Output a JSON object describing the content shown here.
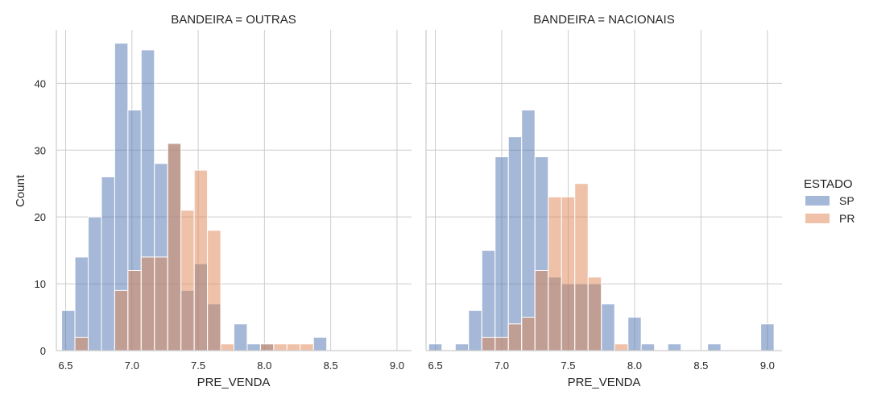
{
  "chart_data": {
    "type": "bar",
    "subtype": "histogram",
    "ylabel": "Count",
    "ylim": [
      0,
      48
    ],
    "yticks": [
      0,
      10,
      20,
      30,
      40
    ],
    "grid": true,
    "legend": {
      "title": "ESTADO",
      "position": "right",
      "entries": [
        {
          "label": "SP",
          "color": "#4c72b0"
        },
        {
          "label": "PR",
          "color": "#dd8452"
        }
      ]
    },
    "bar_opacity": 0.5,
    "panels": [
      {
        "title": "BANDEIRA = OUTRAS",
        "xlabel": "PRE_VENDA",
        "xlim": [
          6.43,
          9.11
        ],
        "xticks": [
          "6.5",
          "7.0",
          "7.5",
          "8.0",
          "8.5",
          "9.0"
        ],
        "bin_starts": [
          6.47,
          6.57,
          6.67,
          6.77,
          6.87,
          6.97,
          7.07,
          7.17,
          7.27,
          7.37,
          7.47,
          7.57,
          7.67,
          7.77,
          7.87,
          7.97,
          8.07,
          8.17,
          8.27,
          8.37
        ],
        "bin_width": 0.1,
        "series": [
          {
            "name": "SP",
            "values": [
              6,
              14,
              20,
              26,
              46,
              36,
              45,
              28,
              31,
              9,
              13,
              7,
              0,
              4,
              1,
              1,
              0,
              0,
              0,
              2
            ]
          },
          {
            "name": "PR",
            "values": [
              0,
              2,
              0,
              0,
              9,
              12,
              14,
              14,
              31,
              21,
              27,
              18,
              1,
              0,
              0,
              1,
              1,
              1,
              1,
              0
            ]
          }
        ]
      },
      {
        "title": "BANDEIRA = NACIONAIS",
        "xlabel": "PRE_VENDA",
        "xlim": [
          6.43,
          9.11
        ],
        "xticks": [
          "6.5",
          "7.0",
          "7.5",
          "8.0",
          "8.5",
          "9.0"
        ],
        "bin_starts": [
          6.45,
          6.55,
          6.65,
          6.75,
          6.85,
          6.95,
          7.05,
          7.15,
          7.25,
          7.35,
          7.45,
          7.55,
          7.65,
          7.75,
          7.85,
          7.95,
          8.05,
          8.15,
          8.25,
          8.35,
          8.45,
          8.55,
          8.65,
          8.75,
          8.85,
          8.95
        ],
        "bin_width": 0.1,
        "series": [
          {
            "name": "SP",
            "values": [
              1,
              0,
              1,
              6,
              15,
              29,
              32,
              36,
              29,
              11,
              10,
              10,
              10,
              7,
              0,
              5,
              1,
              0,
              1,
              0,
              0,
              1,
              0,
              0,
              0,
              4
            ]
          },
          {
            "name": "PR",
            "values": [
              0,
              0,
              0,
              0,
              2,
              2,
              4,
              5,
              12,
              23,
              23,
              25,
              11,
              0,
              1,
              0,
              0,
              0,
              0,
              0,
              0,
              0,
              0,
              0,
              0,
              0
            ]
          }
        ]
      }
    ]
  }
}
